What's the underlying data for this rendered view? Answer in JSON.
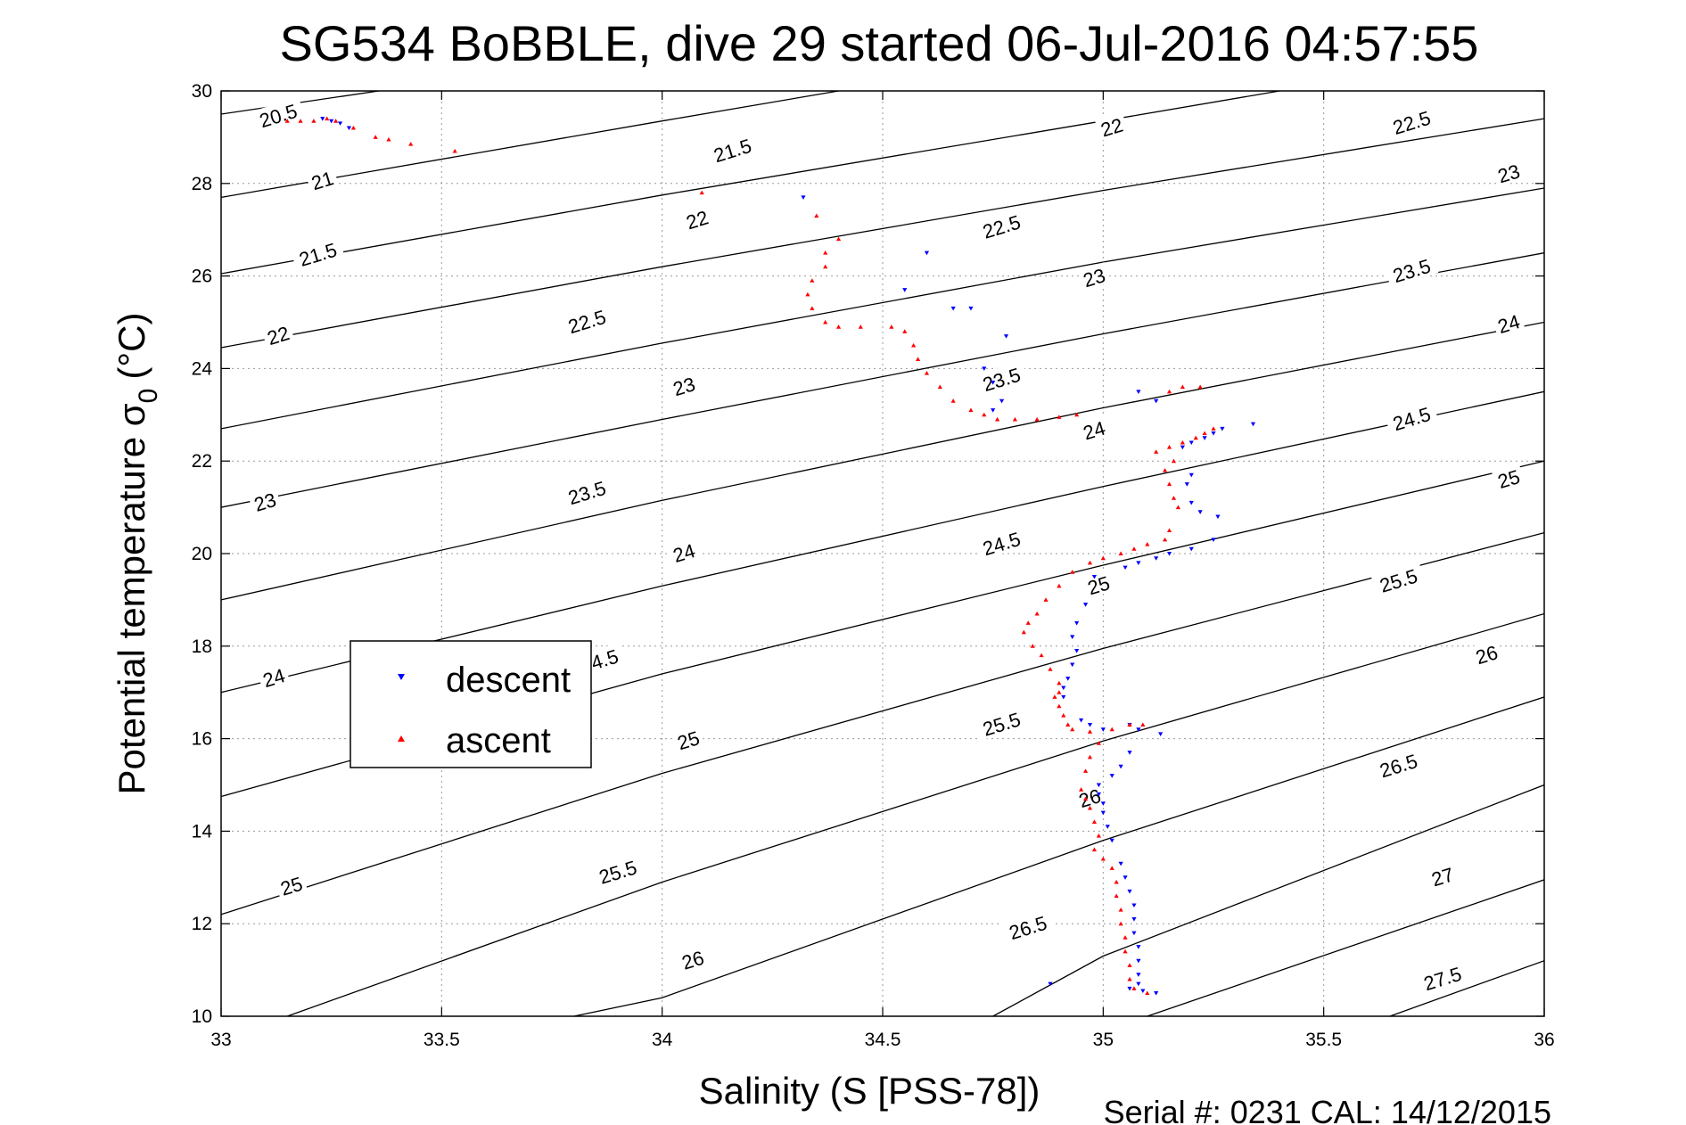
{
  "chart_data": {
    "type": "scatter",
    "title": "SG534 BoBBLE, dive 29 started 06-Jul-2016 04:57:55",
    "xlabel": "Salinity (S [PSS-78])",
    "ylabel_main": "Potential temperature σ",
    "ylabel_sub": "0",
    "ylabel_unit": "(°C)",
    "xlim": [
      33,
      36
    ],
    "ylim": [
      10,
      30
    ],
    "xticks": [
      33,
      33.5,
      34,
      34.5,
      35,
      35.5,
      36
    ],
    "xtick_labels": [
      "33",
      "33.5",
      "34",
      "34.5",
      "35",
      "35.5",
      "36"
    ],
    "yticks": [
      10,
      12,
      14,
      16,
      18,
      20,
      22,
      24,
      26,
      28,
      30
    ],
    "ytick_labels": [
      "10",
      "12",
      "14",
      "16",
      "18",
      "20",
      "22",
      "24",
      "26",
      "28",
      "30"
    ],
    "grid": true,
    "grid_style": "dotted",
    "legend_position": "left",
    "footer": "Serial #: 0231  CAL: 14/12/2015",
    "series": [
      {
        "name": "descent",
        "marker": "triangle-down",
        "color": "#0000ff",
        "points": [
          [
            33.23,
            29.4
          ],
          [
            33.25,
            29.35
          ],
          [
            33.27,
            29.3
          ],
          [
            33.29,
            29.2
          ],
          [
            34.32,
            27.7
          ],
          [
            34.6,
            26.5
          ],
          [
            34.55,
            25.7
          ],
          [
            34.7,
            25.3
          ],
          [
            34.78,
            24.7
          ],
          [
            34.66,
            25.3
          ],
          [
            34.73,
            24.0
          ],
          [
            34.75,
            23.7
          ],
          [
            34.77,
            23.3
          ],
          [
            34.75,
            23.1
          ],
          [
            35.08,
            23.5
          ],
          [
            35.12,
            23.3
          ],
          [
            35.34,
            22.8
          ],
          [
            35.27,
            22.7
          ],
          [
            35.25,
            22.6
          ],
          [
            35.23,
            22.5
          ],
          [
            35.2,
            22.4
          ],
          [
            35.18,
            22.3
          ],
          [
            35.2,
            21.7
          ],
          [
            35.19,
            21.5
          ],
          [
            35.2,
            21.1
          ],
          [
            35.22,
            20.9
          ],
          [
            35.26,
            20.8
          ],
          [
            35.25,
            20.3
          ],
          [
            35.2,
            20.1
          ],
          [
            35.15,
            20.0
          ],
          [
            35.12,
            19.9
          ],
          [
            35.08,
            19.8
          ],
          [
            35.05,
            19.7
          ],
          [
            34.98,
            19.5
          ],
          [
            34.96,
            18.9
          ],
          [
            34.94,
            18.5
          ],
          [
            34.93,
            18.2
          ],
          [
            34.94,
            17.9
          ],
          [
            34.93,
            17.6
          ],
          [
            34.92,
            17.3
          ],
          [
            34.91,
            17.1
          ],
          [
            34.91,
            16.9
          ],
          [
            34.95,
            16.4
          ],
          [
            34.97,
            16.3
          ],
          [
            35.0,
            16.2
          ],
          [
            35.06,
            16.3
          ],
          [
            35.08,
            16.2
          ],
          [
            35.13,
            16.1
          ],
          [
            35.06,
            15.7
          ],
          [
            35.04,
            15.4
          ],
          [
            35.02,
            15.2
          ],
          [
            34.99,
            15.0
          ],
          [
            34.99,
            14.8
          ],
          [
            35.0,
            14.6
          ],
          [
            35.0,
            14.4
          ],
          [
            35.01,
            14.1
          ],
          [
            35.02,
            13.8
          ],
          [
            35.04,
            13.3
          ],
          [
            35.05,
            13.0
          ],
          [
            35.06,
            12.7
          ],
          [
            35.07,
            12.4
          ],
          [
            35.07,
            12.1
          ],
          [
            35.07,
            11.8
          ],
          [
            35.08,
            11.5
          ],
          [
            35.08,
            11.2
          ],
          [
            35.08,
            10.9
          ],
          [
            35.08,
            10.7
          ],
          [
            35.09,
            10.55
          ],
          [
            35.12,
            10.5
          ],
          [
            34.88,
            10.7
          ],
          [
            35.06,
            10.6
          ]
        ]
      },
      {
        "name": "ascent",
        "marker": "triangle-up",
        "color": "#ff0000",
        "points": [
          [
            33.15,
            29.35
          ],
          [
            33.18,
            29.35
          ],
          [
            33.21,
            29.35
          ],
          [
            33.24,
            29.4
          ],
          [
            33.26,
            29.35
          ],
          [
            33.3,
            29.2
          ],
          [
            33.35,
            29.0
          ],
          [
            33.38,
            28.95
          ],
          [
            33.43,
            28.85
          ],
          [
            33.53,
            28.7
          ],
          [
            34.09,
            27.8
          ],
          [
            34.35,
            27.3
          ],
          [
            34.4,
            26.8
          ],
          [
            34.37,
            26.5
          ],
          [
            34.37,
            26.2
          ],
          [
            34.34,
            25.9
          ],
          [
            34.33,
            25.6
          ],
          [
            34.34,
            25.3
          ],
          [
            34.37,
            25.0
          ],
          [
            34.4,
            24.9
          ],
          [
            34.45,
            24.9
          ],
          [
            34.52,
            24.9
          ],
          [
            34.55,
            24.8
          ],
          [
            34.57,
            24.5
          ],
          [
            34.58,
            24.2
          ],
          [
            34.6,
            23.9
          ],
          [
            34.63,
            23.6
          ],
          [
            34.66,
            23.3
          ],
          [
            34.7,
            23.1
          ],
          [
            34.73,
            23.0
          ],
          [
            34.76,
            22.9
          ],
          [
            34.8,
            22.9
          ],
          [
            34.85,
            22.9
          ],
          [
            34.9,
            22.95
          ],
          [
            34.94,
            23.0
          ],
          [
            35.12,
            22.2
          ],
          [
            35.15,
            22.3
          ],
          [
            35.18,
            22.4
          ],
          [
            35.21,
            22.5
          ],
          [
            35.23,
            22.6
          ],
          [
            35.25,
            22.7
          ],
          [
            35.22,
            23.6
          ],
          [
            35.18,
            23.6
          ],
          [
            35.15,
            23.5
          ],
          [
            35.16,
            22.0
          ],
          [
            35.14,
            21.8
          ],
          [
            35.15,
            21.5
          ],
          [
            35.16,
            21.2
          ],
          [
            35.17,
            21.0
          ],
          [
            35.15,
            20.5
          ],
          [
            35.14,
            20.3
          ],
          [
            35.1,
            20.2
          ],
          [
            35.07,
            20.1
          ],
          [
            35.04,
            20.0
          ],
          [
            35.0,
            19.9
          ],
          [
            34.97,
            19.8
          ],
          [
            34.93,
            19.6
          ],
          [
            34.9,
            19.3
          ],
          [
            34.87,
            19.0
          ],
          [
            34.85,
            18.7
          ],
          [
            34.83,
            18.5
          ],
          [
            34.82,
            18.3
          ],
          [
            34.84,
            18.0
          ],
          [
            34.86,
            17.8
          ],
          [
            34.88,
            17.5
          ],
          [
            34.9,
            17.2
          ],
          [
            34.9,
            17.0
          ],
          [
            34.89,
            16.9
          ],
          [
            34.9,
            16.7
          ],
          [
            34.91,
            16.5
          ],
          [
            34.92,
            16.3
          ],
          [
            34.93,
            16.2
          ],
          [
            34.97,
            16.15
          ],
          [
            35.02,
            16.2
          ],
          [
            35.06,
            16.3
          ],
          [
            35.09,
            16.3
          ],
          [
            34.99,
            15.9
          ],
          [
            34.97,
            15.6
          ],
          [
            34.96,
            15.3
          ],
          [
            34.95,
            14.9
          ],
          [
            34.96,
            14.7
          ],
          [
            34.97,
            14.5
          ],
          [
            34.98,
            14.2
          ],
          [
            34.99,
            13.9
          ],
          [
            34.98,
            13.6
          ],
          [
            35.0,
            13.4
          ],
          [
            35.02,
            13.2
          ],
          [
            35.03,
            12.9
          ],
          [
            35.03,
            12.6
          ],
          [
            35.04,
            12.3
          ],
          [
            35.04,
            12.0
          ],
          [
            35.05,
            11.7
          ],
          [
            35.05,
            11.4
          ],
          [
            35.06,
            11.1
          ],
          [
            35.06,
            10.8
          ],
          [
            35.07,
            10.6
          ],
          [
            35.1,
            10.5
          ]
        ]
      }
    ],
    "contours": [
      {
        "level": "20.5",
        "points": [
          [
            33.0,
            29.5
          ],
          [
            33.5,
            30.2
          ]
        ]
      },
      {
        "level": "21",
        "points": [
          [
            33.0,
            27.7
          ],
          [
            34.0,
            29.35
          ],
          [
            34.4,
            30.0
          ]
        ]
      },
      {
        "level": "21.5",
        "points": [
          [
            33.0,
            26.05
          ],
          [
            34.0,
            27.75
          ],
          [
            35.0,
            29.35
          ],
          [
            35.4,
            30.0
          ]
        ]
      },
      {
        "level": "22",
        "points": [
          [
            33.0,
            24.45
          ],
          [
            34.0,
            26.2
          ],
          [
            35.0,
            27.85
          ],
          [
            36.0,
            29.4
          ]
        ]
      },
      {
        "level": "22.5",
        "points": [
          [
            33.0,
            22.7
          ],
          [
            34.0,
            24.55
          ],
          [
            35.0,
            26.3
          ],
          [
            36.0,
            27.9
          ]
        ]
      },
      {
        "level": "23",
        "points": [
          [
            33.0,
            21.0
          ],
          [
            34.0,
            22.9
          ],
          [
            35.0,
            24.75
          ],
          [
            36.0,
            26.5
          ]
        ]
      },
      {
        "level": "23.5",
        "points": [
          [
            33.0,
            19.0
          ],
          [
            34.0,
            21.15
          ],
          [
            35.0,
            23.15
          ],
          [
            36.0,
            25.0
          ]
        ]
      },
      {
        "level": "24",
        "points": [
          [
            33.0,
            17.0
          ],
          [
            34.0,
            19.3
          ],
          [
            35.0,
            21.45
          ],
          [
            36.0,
            23.5
          ]
        ]
      },
      {
        "level": "24.5",
        "points": [
          [
            33.0,
            14.75
          ],
          [
            34.0,
            17.4
          ],
          [
            35.0,
            19.75
          ],
          [
            36.0,
            22.0
          ]
        ]
      },
      {
        "level": "25",
        "points": [
          [
            33.0,
            12.2
          ],
          [
            34.0,
            15.25
          ],
          [
            35.0,
            17.95
          ],
          [
            36.0,
            20.45
          ]
        ]
      },
      {
        "level": "25.5",
        "points": [
          [
            33.15,
            10.0
          ],
          [
            34.0,
            12.9
          ],
          [
            35.0,
            15.95
          ],
          [
            36.0,
            18.7
          ]
        ]
      },
      {
        "level": "26",
        "points": [
          [
            33.8,
            10.0
          ],
          [
            34.0,
            10.4
          ],
          [
            35.0,
            13.8
          ],
          [
            36.0,
            16.9
          ]
        ]
      },
      {
        "level": "26.5",
        "points": [
          [
            34.75,
            10.0
          ],
          [
            35.0,
            11.3
          ],
          [
            36.0,
            15.0
          ]
        ]
      },
      {
        "level": "27",
        "points": [
          [
            35.1,
            10.0
          ],
          [
            36.0,
            12.95
          ]
        ]
      },
      {
        "level": "27.5",
        "points": [
          [
            35.65,
            10.0
          ],
          [
            36.0,
            11.2
          ]
        ]
      }
    ],
    "contour_labels": [
      {
        "text": "20.5",
        "x": 33.13,
        "y": 29.45
      },
      {
        "text": "21",
        "x": 33.23,
        "y": 28.05
      },
      {
        "text": "21.5",
        "x": 33.22,
        "y": 26.45
      },
      {
        "text": "22",
        "x": 33.13,
        "y": 24.7
      },
      {
        "text": "23",
        "x": 33.1,
        "y": 21.1
      },
      {
        "text": "24",
        "x": 33.12,
        "y": 17.3
      },
      {
        "text": "25",
        "x": 33.16,
        "y": 12.8
      },
      {
        "text": "21.5",
        "x": 34.16,
        "y": 28.7
      },
      {
        "text": "22",
        "x": 34.08,
        "y": 27.2
      },
      {
        "text": "22.5",
        "x": 33.83,
        "y": 25.0
      },
      {
        "text": "23",
        "x": 34.05,
        "y": 23.6
      },
      {
        "text": "23.5",
        "x": 33.83,
        "y": 21.3
      },
      {
        "text": "24",
        "x": 34.05,
        "y": 20.0
      },
      {
        "text": "4.5",
        "x": 33.87,
        "y": 17.7
      },
      {
        "text": "25",
        "x": 34.06,
        "y": 15.95
      },
      {
        "text": "25.5",
        "x": 33.9,
        "y": 13.1
      },
      {
        "text": "26",
        "x": 34.07,
        "y": 11.2
      },
      {
        "text": "22",
        "x": 35.02,
        "y": 29.2
      },
      {
        "text": "22.5",
        "x": 34.77,
        "y": 27.05
      },
      {
        "text": "23",
        "x": 34.98,
        "y": 25.95
      },
      {
        "text": "23.5",
        "x": 34.77,
        "y": 23.75
      },
      {
        "text": "24",
        "x": 34.98,
        "y": 22.65
      },
      {
        "text": "24.5",
        "x": 34.77,
        "y": 20.2
      },
      {
        "text": "25",
        "x": 34.99,
        "y": 19.3
      },
      {
        "text": "25.5",
        "x": 34.77,
        "y": 16.3
      },
      {
        "text": "26",
        "x": 34.97,
        "y": 14.7
      },
      {
        "text": "26.5",
        "x": 34.83,
        "y": 11.9
      },
      {
        "text": "22.5",
        "x": 35.7,
        "y": 29.3
      },
      {
        "text": "23",
        "x": 35.92,
        "y": 28.2
      },
      {
        "text": "23.5",
        "x": 35.7,
        "y": 26.1
      },
      {
        "text": "24",
        "x": 35.92,
        "y": 24.95
      },
      {
        "text": "24.5",
        "x": 35.7,
        "y": 22.9
      },
      {
        "text": "25",
        "x": 35.92,
        "y": 21.6
      },
      {
        "text": "25.5",
        "x": 35.67,
        "y": 19.4
      },
      {
        "text": "26",
        "x": 35.87,
        "y": 17.8
      },
      {
        "text": "26.5",
        "x": 35.67,
        "y": 15.4
      },
      {
        "text": "27",
        "x": 35.77,
        "y": 13.0
      },
      {
        "text": "27.5",
        "x": 35.77,
        "y": 10.8
      }
    ]
  }
}
